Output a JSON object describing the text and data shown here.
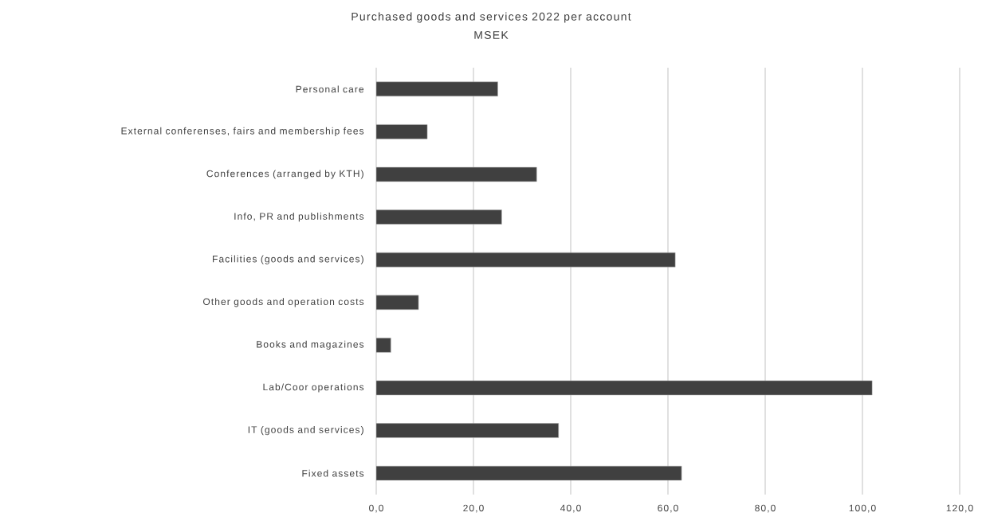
{
  "chart_data": {
    "type": "bar",
    "orientation": "horizontal",
    "title": "Purchased goods and services 2022 per account",
    "subtitle": "MSEK",
    "categories": [
      "Personal care",
      "External conferenses, fairs and membership fees",
      "Conferences (arranged by KTH)",
      "Info, PR and publishments",
      "Facilities (goods and services)",
      "Other goods and operation costs",
      "Books and magazines",
      "Lab/Coor operations",
      "IT (goods and services)",
      "Fixed assets"
    ],
    "values": [
      25.0,
      10.5,
      33.0,
      25.8,
      61.5,
      8.7,
      3.0,
      102.0,
      37.5,
      62.8
    ],
    "color": "#404040",
    "xlim": [
      0,
      120
    ],
    "xticks": [
      {
        "value": 0,
        "label": "0,0"
      },
      {
        "value": 20,
        "label": "20,0"
      },
      {
        "value": 40,
        "label": "40,0"
      },
      {
        "value": 60,
        "label": "60,0"
      },
      {
        "value": 80,
        "label": "80,0"
      },
      {
        "value": 100,
        "label": "100,0"
      },
      {
        "value": 120,
        "label": "120,0"
      }
    ],
    "grid": "x"
  }
}
